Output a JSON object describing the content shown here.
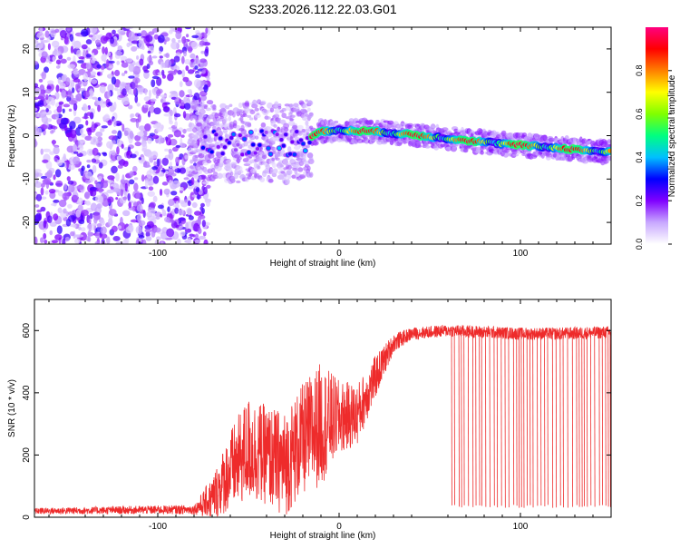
{
  "title": "S233.2026.112.22.03.G01",
  "colorbar": {
    "label": "Normalized spectral amplitude",
    "ticks": [
      "0.0",
      "0.2",
      "0.4",
      "0.6",
      "0.8"
    ],
    "tick_values": [
      0.0,
      0.2,
      0.4,
      0.6,
      0.8
    ],
    "range": [
      0.0,
      1.0
    ],
    "colormap": [
      "#ffffff",
      "#c8a8ff",
      "#8000ff",
      "#0000ff",
      "#00c0ff",
      "#00ff80",
      "#80ff00",
      "#ffff00",
      "#ff8000",
      "#ff0000",
      "#ff0080"
    ]
  },
  "chart_data": [
    {
      "type": "heatmap",
      "xlabel": "Height of straight line (km)",
      "ylabel": "Frequency (Hz)",
      "xlim": [
        -168,
        150
      ],
      "ylim": [
        -25,
        25
      ],
      "x_ticks": [
        -100,
        0,
        100
      ],
      "x_tick_labels": [
        "-100",
        "0",
        "100"
      ],
      "y_ticks": [
        -20,
        -10,
        0,
        10,
        20
      ],
      "y_tick_labels": [
        "-20",
        "-10",
        "0",
        "10",
        "20"
      ],
      "ridge": {
        "x": [
          -75,
          -60,
          -45,
          -30,
          -20,
          -15,
          -10,
          0,
          20,
          40,
          60,
          80,
          100,
          120,
          140,
          150
        ],
        "y": [
          -1,
          -2,
          -1,
          -2,
          -1,
          0,
          1,
          1.2,
          1,
          0.2,
          -0.6,
          -1.5,
          -2.2,
          -2.8,
          -3.5,
          -3.8
        ]
      },
      "noise_region_x": [
        -168,
        -80
      ]
    },
    {
      "type": "line",
      "xlabel": "Height of straight line (km)",
      "ylabel": "SNR (10 * v/v)",
      "xlim": [
        -168,
        150
      ],
      "ylim": [
        0,
        700
      ],
      "x_ticks": [
        -100,
        0,
        100
      ],
      "x_tick_labels": [
        "-100",
        "0",
        "100"
      ],
      "y_ticks": [
        0,
        200,
        400,
        600
      ],
      "y_tick_labels": [
        "0",
        "200",
        "400",
        "600"
      ],
      "color": "#ee2b2b",
      "envelope": {
        "x": [
          -168,
          -80,
          -70,
          -60,
          -50,
          -40,
          -30,
          -20,
          -10,
          0,
          10,
          20,
          30,
          40,
          60,
          80,
          100,
          120,
          150
        ],
        "mean": [
          20,
          25,
          60,
          150,
          220,
          200,
          170,
          250,
          300,
          320,
          330,
          450,
          560,
          590,
          600,
          595,
          590,
          590,
          595
        ],
        "spread": [
          10,
          15,
          70,
          130,
          170,
          160,
          170,
          180,
          200,
          120,
          100,
          70,
          30,
          20,
          20,
          20,
          20,
          20,
          20
        ]
      },
      "dropouts": {
        "x_range": [
          62,
          150
        ],
        "min_value": 30
      }
    }
  ]
}
